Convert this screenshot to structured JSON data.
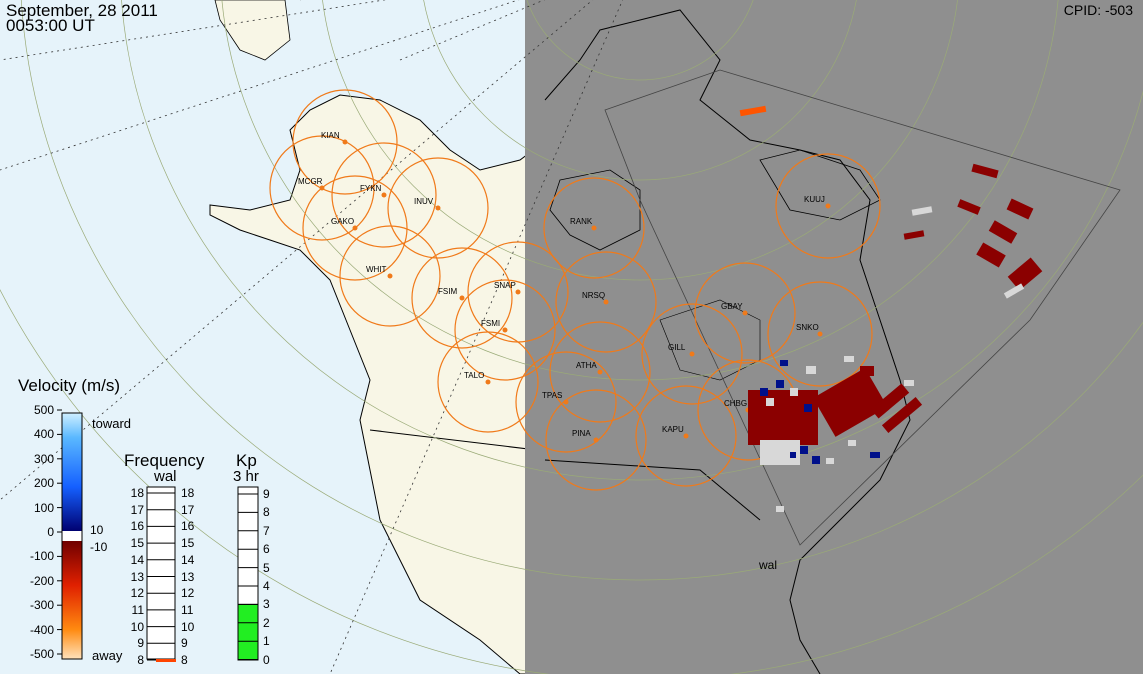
{
  "header": {
    "date": "September, 28 2011",
    "time": "0053:00 UT",
    "cpid": "CPID:  -503"
  },
  "velocity_scale": {
    "title": "Velocity (m/s)",
    "toward_label": "toward",
    "away_label": "away",
    "ticks": [
      "500",
      "400",
      "300",
      "200",
      "100",
      "0",
      "-100",
      "-200",
      "-300",
      "-400",
      "-500"
    ],
    "ground_scatter": [
      "10",
      "-10"
    ]
  },
  "frequency_scale": {
    "title": "Frequency",
    "station": "wal",
    "left_ticks": [
      "18",
      "17",
      "16",
      "15",
      "14",
      "13",
      "12",
      "11",
      "10",
      "9",
      "8"
    ],
    "right_ticks": [
      "18",
      "17",
      "16",
      "15",
      "14",
      "13",
      "12",
      "11",
      "10",
      "9",
      "8"
    ],
    "current_value": 8,
    "marker_color": "#ff4400"
  },
  "kp_scale": {
    "title": "Kp",
    "subtitle": "3 hr",
    "ticks": [
      "9",
      "8",
      "7",
      "6",
      "5",
      "4",
      "3",
      "2",
      "1",
      "0"
    ],
    "current_value": 3,
    "fill_color": "#22ee22"
  },
  "map": {
    "field_of_view_label": "wal",
    "stations": [
      "KIAN",
      "MCGR",
      "FYKN",
      "INUV",
      "GAKO",
      "WHIT",
      "FSIM",
      "SNAP",
      "FSMI",
      "TALO",
      "RANK",
      "NRSQ",
      "KUUJ",
      "GBAY",
      "SNKO",
      "GILL",
      "ATHA",
      "TPAS",
      "CHBG",
      "KAPU",
      "PINA"
    ],
    "colors": {
      "ocean": "#e6f3fa",
      "land": "#f8f6e6",
      "night": "#8f8f8f",
      "circle": "#f07a1a",
      "scatter_away": "#8b0000",
      "scatter_toward": "#00108a",
      "ground_scatter": "#d8d8d8"
    }
  }
}
